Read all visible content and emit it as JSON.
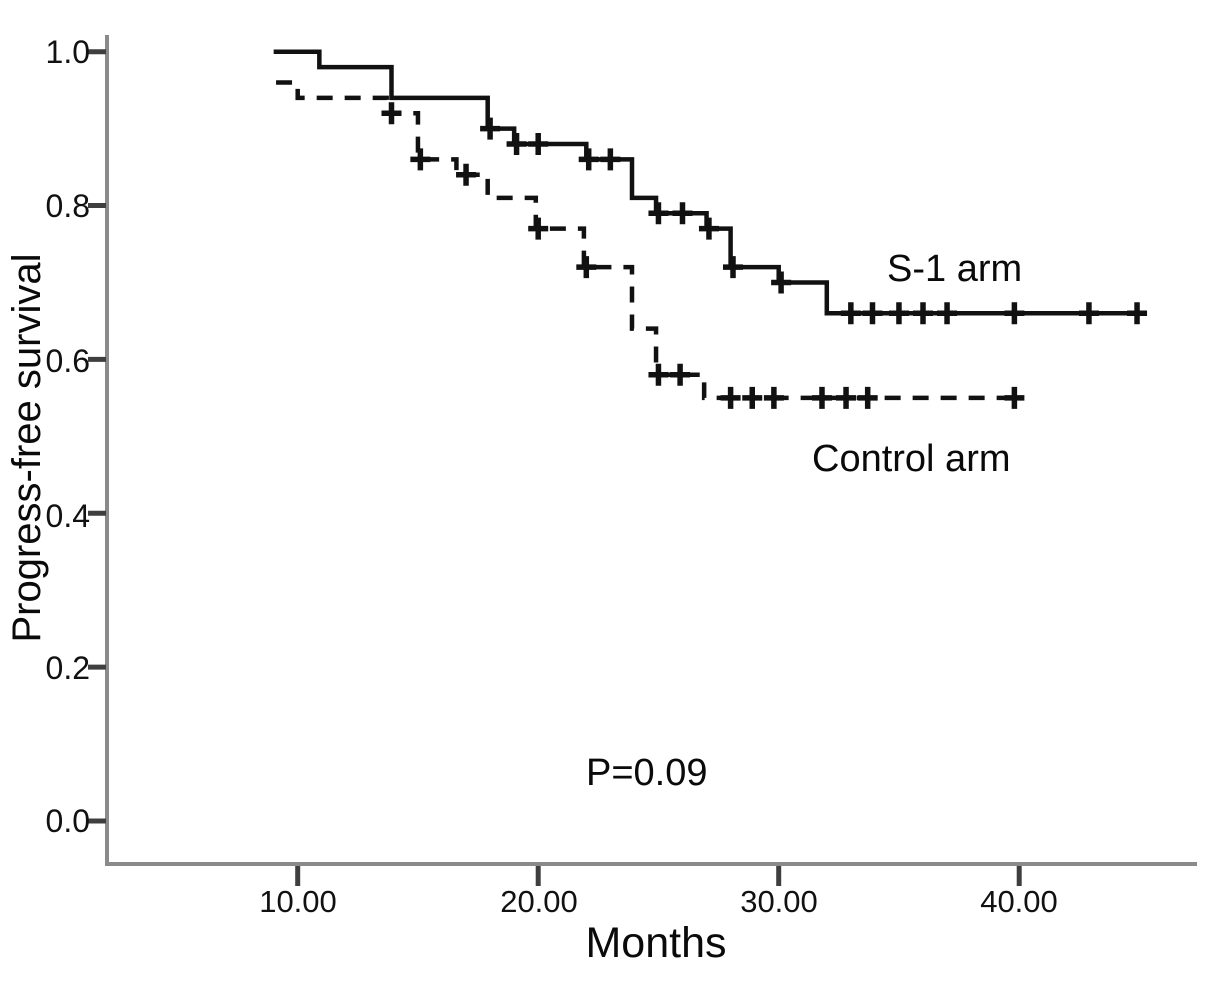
{
  "chart_data": {
    "type": "line",
    "subtype": "kaplan-meier-step",
    "title": "",
    "xlabel": "Months",
    "ylabel": "Progress-free survival",
    "x_ticks": [
      "10.00",
      "20.00",
      "30.00",
      "40.00"
    ],
    "x_tick_values": [
      10,
      20,
      30,
      40
    ],
    "y_ticks": [
      "1.0",
      "0.8",
      "0.6",
      "0.4",
      "0.2",
      "0.0"
    ],
    "y_tick_values": [
      1.0,
      0.8,
      0.6,
      0.4,
      0.2,
      0.0
    ],
    "xlim": [
      2,
      47.4
    ],
    "ylim": [
      -0.06,
      1.02
    ],
    "grid": false,
    "legend_position": "inline-annotations",
    "p_value_label": "P=0.09",
    "series": [
      {
        "name": "S-1 arm",
        "style": "solid",
        "color": "#111111",
        "steps": [
          [
            9.0,
            1.0
          ],
          [
            10.9,
            0.98
          ],
          [
            13.9,
            0.94
          ],
          [
            17.9,
            0.9
          ],
          [
            19.0,
            0.88
          ],
          [
            22.0,
            0.86
          ],
          [
            23.9,
            0.81
          ],
          [
            24.9,
            0.79
          ],
          [
            27.0,
            0.77
          ],
          [
            28.0,
            0.72
          ],
          [
            30.0,
            0.7
          ],
          [
            32.0,
            0.66
          ]
        ],
        "end_x": 45.0,
        "censors": [
          [
            18.0,
            0.9
          ],
          [
            19.1,
            0.88
          ],
          [
            20.0,
            0.88
          ],
          [
            22.1,
            0.86
          ],
          [
            23.0,
            0.86
          ],
          [
            25.0,
            0.79
          ],
          [
            26.0,
            0.79
          ],
          [
            27.1,
            0.77
          ],
          [
            28.1,
            0.72
          ],
          [
            30.1,
            0.7
          ],
          [
            33.0,
            0.66
          ],
          [
            33.9,
            0.66
          ],
          [
            35.0,
            0.66
          ],
          [
            36.0,
            0.66
          ],
          [
            37.0,
            0.66
          ],
          [
            39.8,
            0.66
          ],
          [
            42.9,
            0.66
          ],
          [
            44.9,
            0.66
          ]
        ]
      },
      {
        "name": "Control arm",
        "style": "dashed",
        "color": "#111111",
        "steps": [
          [
            9.1,
            0.96
          ],
          [
            10.0,
            0.94
          ],
          [
            13.7,
            0.92
          ],
          [
            15.0,
            0.86
          ],
          [
            16.6,
            0.84
          ],
          [
            17.9,
            0.81
          ],
          [
            19.9,
            0.77
          ],
          [
            21.9,
            0.72
          ],
          [
            23.9,
            0.64
          ],
          [
            24.9,
            0.58
          ],
          [
            26.9,
            0.55
          ]
        ],
        "end_x": 39.8,
        "censors": [
          [
            13.9,
            0.92
          ],
          [
            15.1,
            0.86
          ],
          [
            17.0,
            0.84
          ],
          [
            20.0,
            0.77
          ],
          [
            22.0,
            0.72
          ],
          [
            25.0,
            0.58
          ],
          [
            25.9,
            0.58
          ],
          [
            28.0,
            0.55
          ],
          [
            28.9,
            0.55
          ],
          [
            29.8,
            0.55
          ],
          [
            31.8,
            0.55
          ],
          [
            32.8,
            0.55
          ],
          [
            33.7,
            0.55
          ],
          [
            39.8,
            0.55
          ]
        ]
      }
    ],
    "annotations": [
      {
        "text": "S-1 arm",
        "x_months": 34.5,
        "y_value": 0.72
      },
      {
        "text": "Control arm",
        "x_months": 31.4,
        "y_value": 0.47
      },
      {
        "text": "P=0.09",
        "x_months": 22.0,
        "y_value": 0.07
      }
    ]
  },
  "colors": {
    "curve": "#111111",
    "axis_line": "#8a8a8a",
    "tick_mark": "#3f3f3f",
    "text": "#0a0a0a",
    "background": "#ffffff"
  }
}
